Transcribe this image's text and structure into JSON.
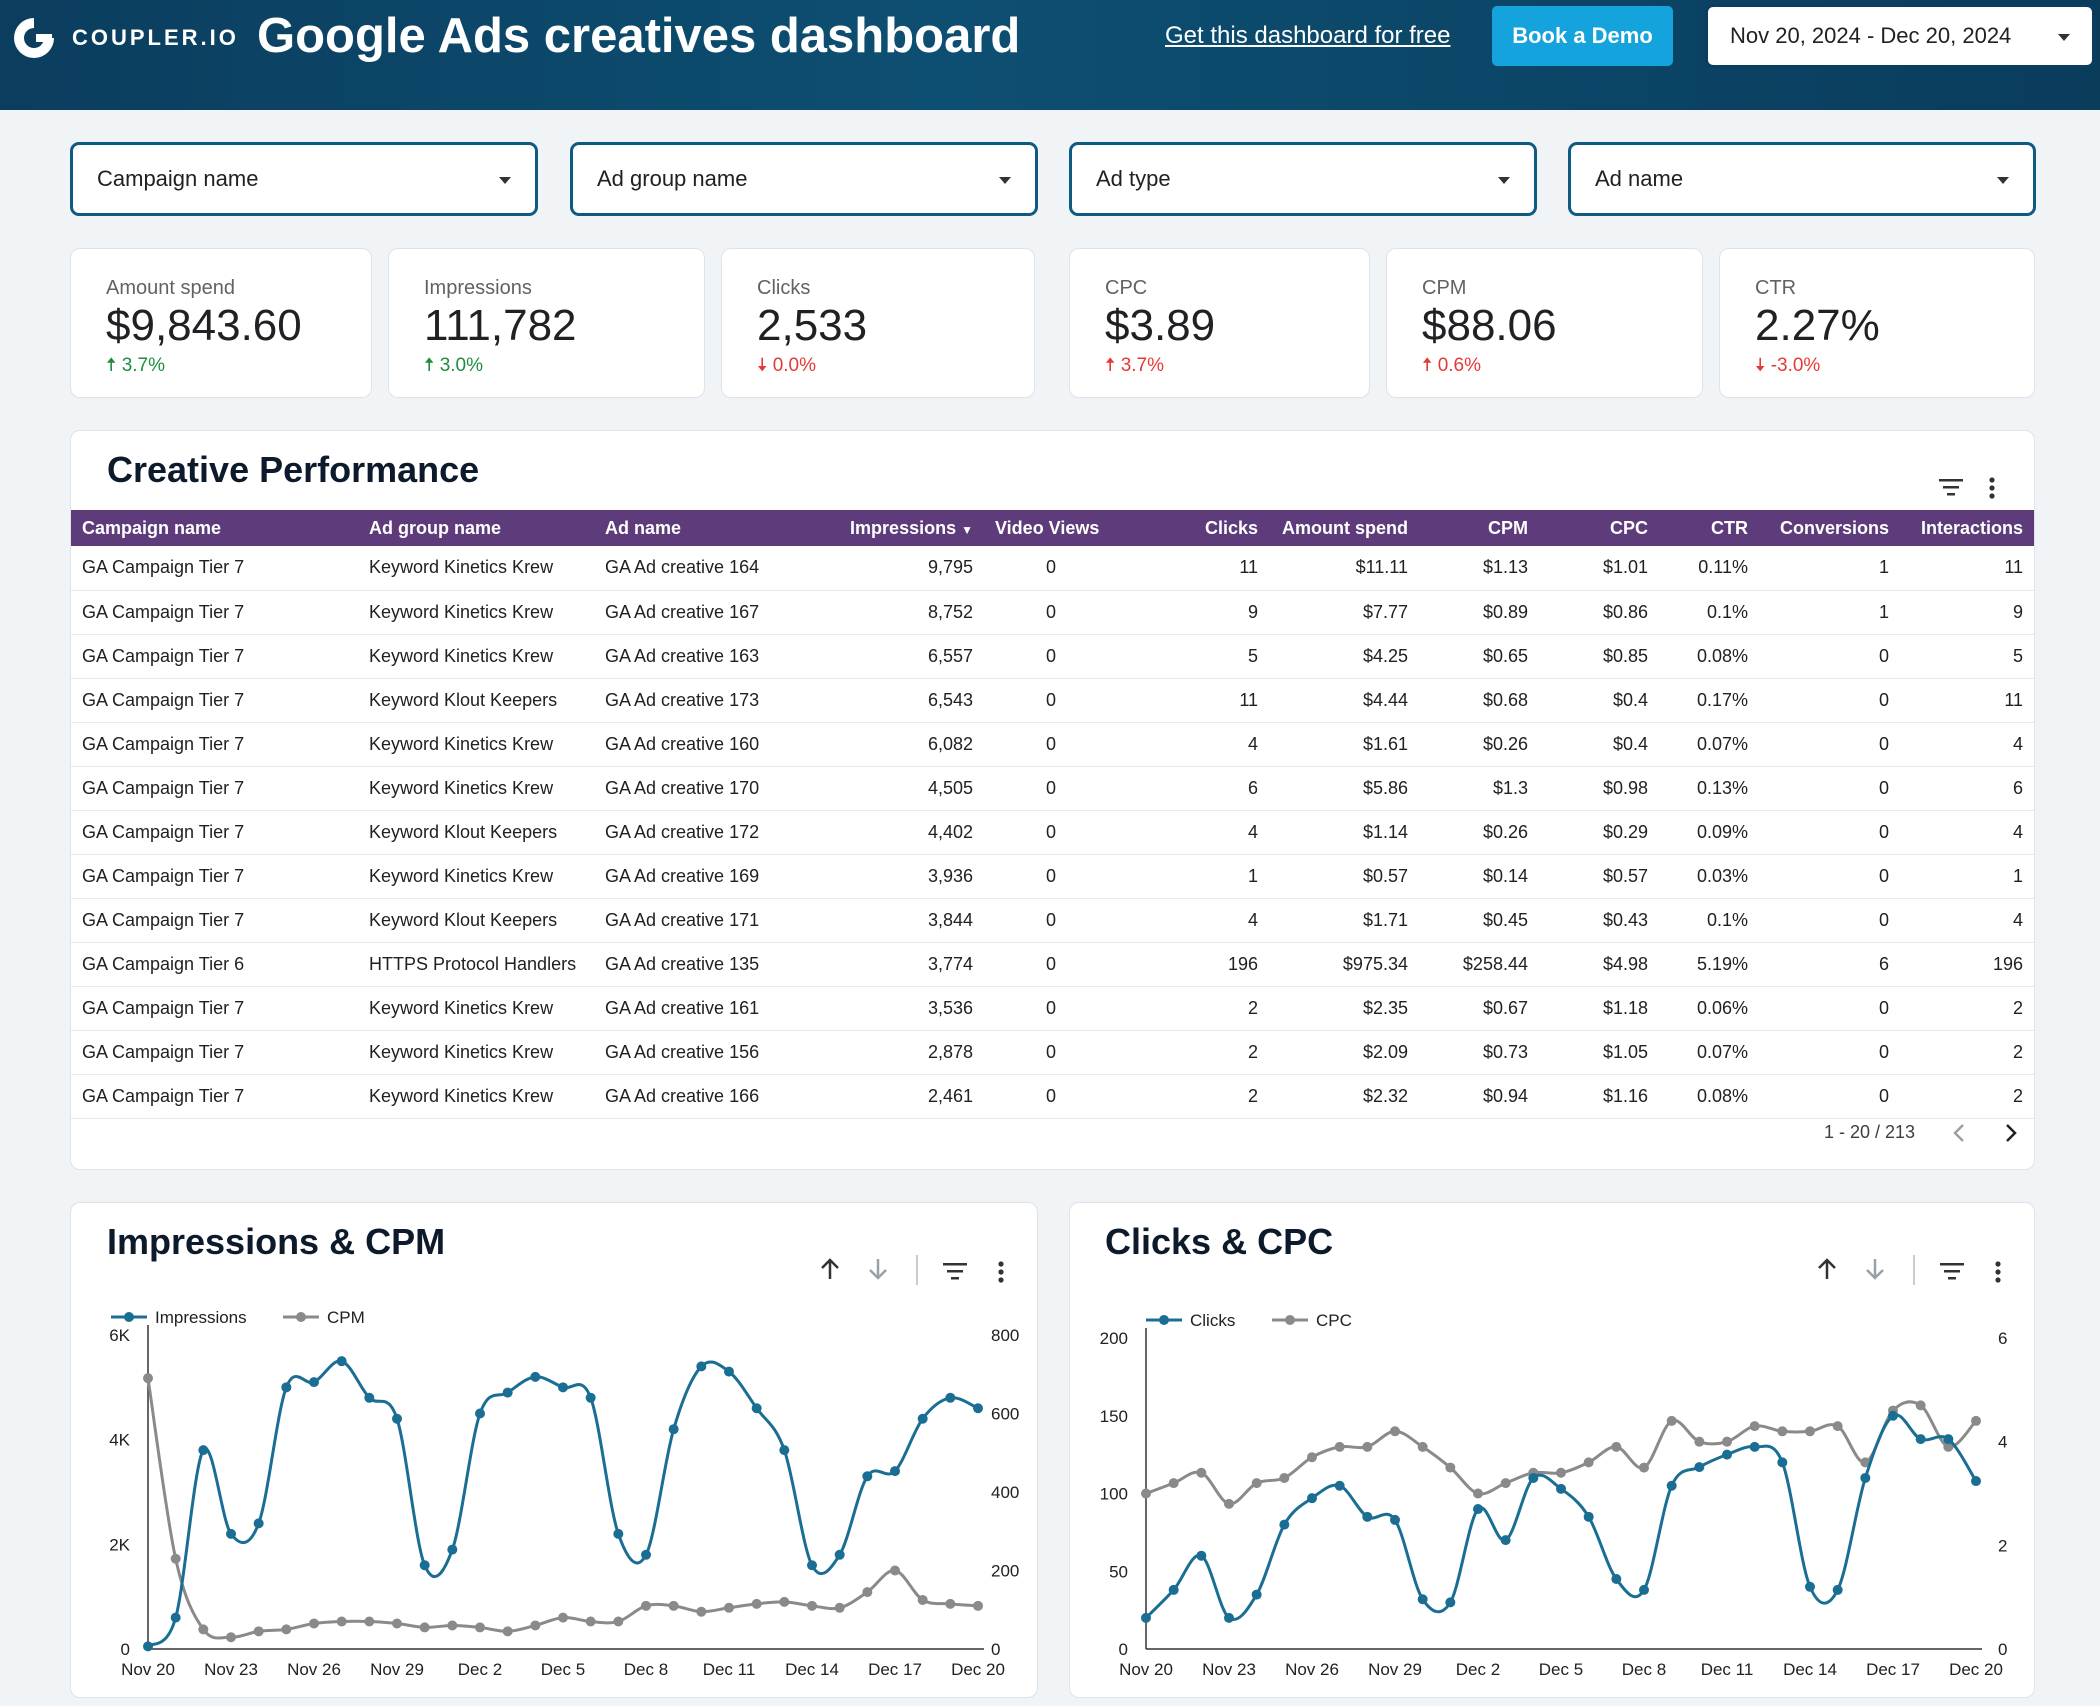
{
  "header": {
    "logo_text": "COUPLER.IO",
    "title": "Google Ads creatives dashboard",
    "link": "Get this dashboard for free",
    "demo_button": "Book a Demo",
    "date_range": "Nov 20, 2024 - Dec 20, 2024"
  },
  "filters": [
    {
      "label": "Campaign name"
    },
    {
      "label": "Ad group name"
    },
    {
      "label": "Ad type"
    },
    {
      "label": "Ad name"
    }
  ],
  "kpis": [
    {
      "label": "Amount spend",
      "value": "$9,843.60",
      "change": "3.7%",
      "dir": "up"
    },
    {
      "label": "Impressions",
      "value": "111,782",
      "change": "3.0%",
      "dir": "up"
    },
    {
      "label": "Clicks",
      "value": "2,533",
      "change": "0.0%",
      "dir": "down"
    },
    {
      "label": "CPC",
      "value": "$3.89",
      "change": "3.7%",
      "dir": "up-bad"
    },
    {
      "label": "CPM",
      "value": "$88.06",
      "change": "0.6%",
      "dir": "up-bad"
    },
    {
      "label": "CTR",
      "value": "2.27%",
      "change": "-3.0%",
      "dir": "down"
    }
  ],
  "colors": {
    "up": "#1e8e3e",
    "down": "#e53935",
    "impressions": "#1a6e93",
    "cpm": "#8a8a8a",
    "header_row": "#5e3b7a"
  },
  "table": {
    "title": "Creative Performance",
    "columns": [
      "Campaign name",
      "Ad group name",
      "Ad name",
      "Impressions",
      "Video Views",
      "Clicks",
      "Amount spend",
      "CPM",
      "CPC",
      "CTR",
      "Conversions",
      "Interactions"
    ],
    "rows": [
      [
        "GA Campaign Tier 7",
        "Keyword Kinetics Krew",
        "GA Ad creative 164",
        "9,795",
        "0",
        "11",
        "$11.11",
        "$1.13",
        "$1.01",
        "0.11%",
        "1",
        "11"
      ],
      [
        "GA Campaign Tier 7",
        "Keyword Kinetics Krew",
        "GA Ad creative 167",
        "8,752",
        "0",
        "9",
        "$7.77",
        "$0.89",
        "$0.86",
        "0.1%",
        "1",
        "9"
      ],
      [
        "GA Campaign Tier 7",
        "Keyword Kinetics Krew",
        "GA Ad creative 163",
        "6,557",
        "0",
        "5",
        "$4.25",
        "$0.65",
        "$0.85",
        "0.08%",
        "0",
        "5"
      ],
      [
        "GA Campaign Tier 7",
        "Keyword Klout Keepers",
        "GA Ad creative 173",
        "6,543",
        "0",
        "11",
        "$4.44",
        "$0.68",
        "$0.4",
        "0.17%",
        "0",
        "11"
      ],
      [
        "GA Campaign Tier 7",
        "Keyword Kinetics Krew",
        "GA Ad creative 160",
        "6,082",
        "0",
        "4",
        "$1.61",
        "$0.26",
        "$0.4",
        "0.07%",
        "0",
        "4"
      ],
      [
        "GA Campaign Tier 7",
        "Keyword Kinetics Krew",
        "GA Ad creative 170",
        "4,505",
        "0",
        "6",
        "$5.86",
        "$1.3",
        "$0.98",
        "0.13%",
        "0",
        "6"
      ],
      [
        "GA Campaign Tier 7",
        "Keyword Klout Keepers",
        "GA Ad creative 172",
        "4,402",
        "0",
        "4",
        "$1.14",
        "$0.26",
        "$0.29",
        "0.09%",
        "0",
        "4"
      ],
      [
        "GA Campaign Tier 7",
        "Keyword Kinetics Krew",
        "GA Ad creative 169",
        "3,936",
        "0",
        "1",
        "$0.57",
        "$0.14",
        "$0.57",
        "0.03%",
        "0",
        "1"
      ],
      [
        "GA Campaign Tier 7",
        "Keyword Klout Keepers",
        "GA Ad creative 171",
        "3,844",
        "0",
        "4",
        "$1.71",
        "$0.45",
        "$0.43",
        "0.1%",
        "0",
        "4"
      ],
      [
        "GA Campaign Tier 6",
        "HTTPS Protocol Handlers",
        "GA Ad creative 135",
        "3,774",
        "0",
        "196",
        "$975.34",
        "$258.44",
        "$4.98",
        "5.19%",
        "6",
        "196"
      ],
      [
        "GA Campaign Tier 7",
        "Keyword Kinetics Krew",
        "GA Ad creative 161",
        "3,536",
        "0",
        "2",
        "$2.35",
        "$0.67",
        "$1.18",
        "0.06%",
        "0",
        "2"
      ],
      [
        "GA Campaign Tier 7",
        "Keyword Kinetics Krew",
        "GA Ad creative 156",
        "2,878",
        "0",
        "2",
        "$2.09",
        "$0.73",
        "$1.05",
        "0.07%",
        "0",
        "2"
      ],
      [
        "GA Campaign Tier 7",
        "Keyword Kinetics Krew",
        "GA Ad creative 166",
        "2,461",
        "0",
        "2",
        "$2.32",
        "$0.94",
        "$1.16",
        "0.08%",
        "0",
        "2"
      ]
    ],
    "pagination": "1 - 20 / 213"
  },
  "chart_data": [
    {
      "type": "line",
      "title": "Impressions & CPM",
      "categories": [
        "Nov 20",
        "Nov 21",
        "Nov 22",
        "Nov 23",
        "Nov 24",
        "Nov 25",
        "Nov 26",
        "Nov 27",
        "Nov 28",
        "Nov 29",
        "Nov 30",
        "Dec 1",
        "Dec 2",
        "Dec 3",
        "Dec 4",
        "Dec 5",
        "Dec 6",
        "Dec 7",
        "Dec 8",
        "Dec 9",
        "Dec 10",
        "Dec 11",
        "Dec 12",
        "Dec 13",
        "Dec 14",
        "Dec 15",
        "Dec 16",
        "Dec 17",
        "Dec 18",
        "Dec 19",
        "Dec 20"
      ],
      "tick_labels": [
        "Nov 20",
        "Nov 23",
        "Nov 26",
        "Nov 29",
        "Dec 2",
        "Dec 5",
        "Dec 8",
        "Dec 11",
        "Dec 14",
        "Dec 17",
        "Dec 20"
      ],
      "legend": [
        "Impressions",
        "CPM"
      ],
      "series": [
        {
          "name": "Impressions",
          "axis": "left",
          "values": [
            50,
            600,
            3800,
            2200,
            2400,
            5000,
            5100,
            5500,
            4800,
            4400,
            1600,
            1900,
            4500,
            4900,
            5200,
            5000,
            4800,
            2200,
            1800,
            4200,
            5400,
            5300,
            4600,
            3800,
            1600,
            1800,
            3300,
            3400,
            4400,
            4800,
            4600
          ]
        },
        {
          "name": "CPM",
          "axis": "right",
          "values": [
            690,
            230,
            50,
            30,
            45,
            50,
            65,
            70,
            70,
            65,
            55,
            60,
            55,
            45,
            60,
            80,
            70,
            70,
            110,
            110,
            95,
            105,
            115,
            120,
            110,
            105,
            145,
            200,
            125,
            115,
            110
          ]
        }
      ],
      "left_ticks": [
        "0",
        "2K",
        "4K",
        "6K"
      ],
      "right_ticks": [
        "0",
        "200",
        "400",
        "600",
        "800"
      ],
      "ylim_left": [
        0,
        6000
      ],
      "ylim_right": [
        0,
        800
      ]
    },
    {
      "type": "line",
      "title": "Clicks & CPC",
      "categories": [
        "Nov 20",
        "Nov 21",
        "Nov 22",
        "Nov 23",
        "Nov 24",
        "Nov 25",
        "Nov 26",
        "Nov 27",
        "Nov 28",
        "Nov 29",
        "Nov 30",
        "Dec 1",
        "Dec 2",
        "Dec 3",
        "Dec 4",
        "Dec 5",
        "Dec 6",
        "Dec 7",
        "Dec 8",
        "Dec 9",
        "Dec 10",
        "Dec 11",
        "Dec 12",
        "Dec 13",
        "Dec 14",
        "Dec 15",
        "Dec 16",
        "Dec 17",
        "Dec 18",
        "Dec 19",
        "Dec 20"
      ],
      "tick_labels": [
        "Nov 20",
        "Nov 23",
        "Nov 26",
        "Nov 29",
        "Dec 2",
        "Dec 5",
        "Dec 8",
        "Dec 11",
        "Dec 14",
        "Dec 17",
        "Dec 20"
      ],
      "legend": [
        "Clicks",
        "CPC"
      ],
      "series": [
        {
          "name": "Clicks",
          "axis": "left",
          "values": [
            20,
            38,
            60,
            20,
            35,
            80,
            97,
            105,
            85,
            83,
            32,
            30,
            90,
            70,
            110,
            103,
            85,
            45,
            38,
            105,
            117,
            125,
            130,
            120,
            40,
            38,
            110,
            150,
            135,
            135,
            108
          ]
        },
        {
          "name": "CPC",
          "axis": "right",
          "values": [
            3.0,
            3.2,
            3.4,
            2.8,
            3.2,
            3.3,
            3.7,
            3.9,
            3.9,
            4.2,
            3.9,
            3.5,
            3.0,
            3.2,
            3.4,
            3.4,
            3.6,
            3.9,
            3.5,
            4.4,
            4.0,
            4.0,
            4.3,
            4.2,
            4.2,
            4.3,
            3.6,
            4.6,
            4.7,
            3.9,
            4.4
          ]
        }
      ],
      "left_ticks": [
        "0",
        "50",
        "100",
        "150",
        "200"
      ],
      "right_ticks": [
        "0",
        "2",
        "4",
        "6"
      ],
      "ylim_left": [
        0,
        200
      ],
      "ylim_right": [
        0,
        6
      ]
    }
  ]
}
